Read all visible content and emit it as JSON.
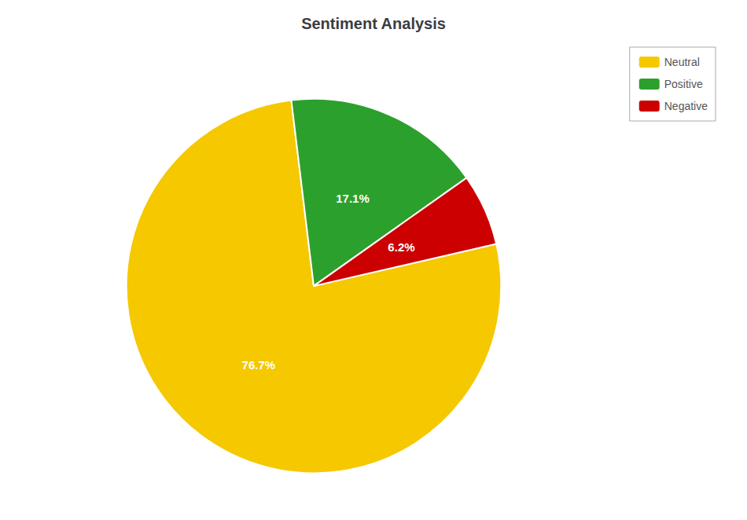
{
  "chart_data": {
    "type": "pie",
    "title": "Sentiment Analysis",
    "categories": [
      "Neutral",
      "Positive",
      "Negative"
    ],
    "values": [
      76.7,
      17.1,
      6.2
    ],
    "value_labels": [
      "76.7%",
      "17.1%",
      "6.2%"
    ],
    "colors": [
      "#f5c800",
      "#2ca02c",
      "#cc0000"
    ],
    "data_labels": true,
    "legend": "upper right"
  }
}
